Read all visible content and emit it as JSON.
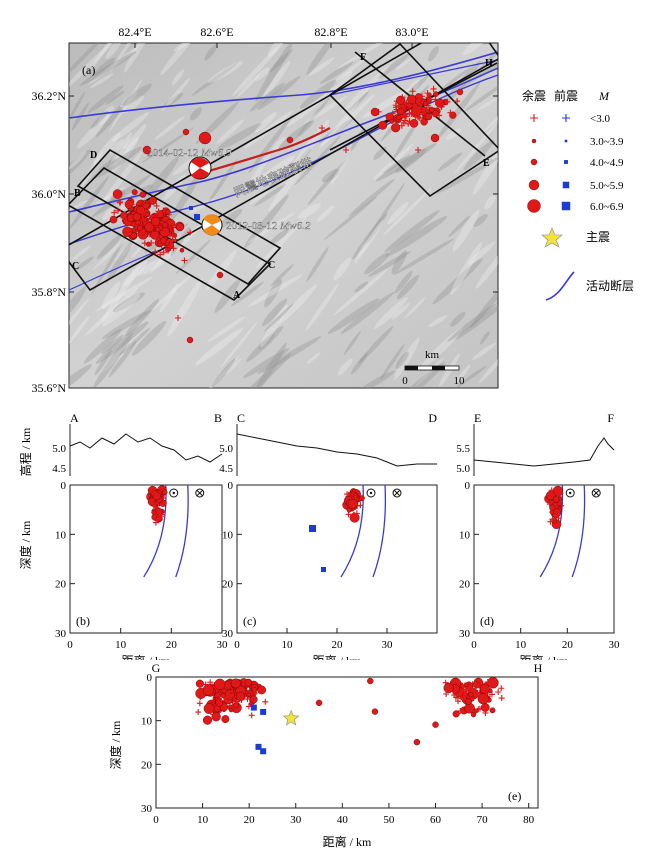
{
  "map": {
    "panel_label": "(a)",
    "lon_ticks": [
      "82.4°E",
      "82.6°E",
      "82.8°E",
      "83.0°E"
    ],
    "lat_ticks": [
      "36.2°N",
      "36.0°N",
      "35.8°N",
      "35.6°N"
    ],
    "event_2014": "2014-02-12",
    "event_2014_mw": "Mw6.9",
    "event_2012": "2012-08-12",
    "event_2012_mw": "Mw6.2",
    "rupture_label": "同震地表破裂带",
    "profile_letters": [
      "A",
      "B",
      "C",
      "D",
      "E",
      "F",
      "G",
      "H"
    ],
    "scale_unit": "km",
    "scale_ticks": [
      "0",
      "10"
    ]
  },
  "legend": {
    "aftershock_header": "余震",
    "foreshock_header": "前震",
    "magnitude_header": "M",
    "classes": [
      "<3.0",
      "3.0~3.9",
      "4.0~4.9",
      "5.0~5.9",
      "6.0~6.9"
    ],
    "mainshock_label": "主震",
    "fault_label": "活动断层",
    "colors": {
      "aftershock": "#e01818",
      "foreshock": "#1a3bd6",
      "fault": "#3a3ad8",
      "mainshock": "#f2e23a"
    }
  },
  "profiles": {
    "elev_axis_label": "高程 / km",
    "depth_axis_label": "深度 / km",
    "dist_axis_label": "距离 / km",
    "depth_ticks": [
      "0",
      "10",
      "20",
      "30"
    ],
    "dist_ticks_small": [
      "0",
      "10",
      "20",
      "30"
    ],
    "panels": [
      {
        "id": "b",
        "label": "(b)",
        "start": "A",
        "end": "B",
        "elev_ticks": [
          "5.0",
          "4.5"
        ]
      },
      {
        "id": "c",
        "label": "(c)",
        "start": "C",
        "end": "D",
        "elev_ticks": [
          "5.0",
          "4.5"
        ]
      },
      {
        "id": "d",
        "label": "(d)",
        "start": "E",
        "end": "F",
        "elev_ticks": [
          "5.5",
          "5.0"
        ]
      }
    ],
    "long_panel": {
      "label": "(e)",
      "start": "G",
      "end": "H",
      "dist_ticks": [
        "0",
        "10",
        "20",
        "30",
        "40",
        "50",
        "60",
        "70",
        "80"
      ]
    }
  }
}
